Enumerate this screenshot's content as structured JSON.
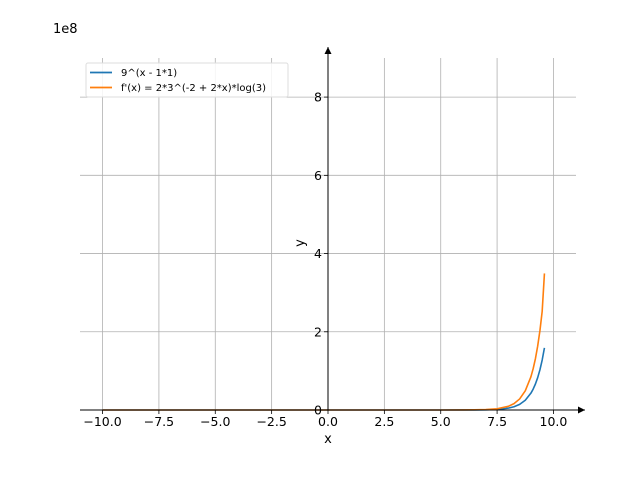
{
  "chart_data": {
    "type": "line",
    "title": "",
    "xlabel": "x",
    "ylabel": "y",
    "y_multiplier_label": "1e8",
    "xlim": [
      -11,
      11
    ],
    "ylim": [
      0,
      9
    ],
    "x_ticks": [
      -10.0,
      -7.5,
      -5.0,
      -2.5,
      0.0,
      2.5,
      5.0,
      7.5,
      10.0
    ],
    "x_tick_labels": [
      "−10.0",
      "−7.5",
      "−5.0",
      "−2.5",
      "0.0",
      "2.5",
      "5.0",
      "7.5",
      "10.0"
    ],
    "y_ticks": [
      0,
      2,
      4,
      6,
      8
    ],
    "y_tick_labels": [
      "0",
      "2",
      "4",
      "6",
      "8"
    ],
    "grid": true,
    "legend_position": "top-left",
    "series": [
      {
        "name": "9^(x - 1*1)",
        "color": "#1f77b4",
        "x": [
          -10,
          -7.5,
          -5,
          -2.5,
          0,
          2.5,
          5,
          6,
          6.5,
          7,
          7.5,
          8,
          8.25,
          8.5,
          8.75,
          9,
          9.1,
          9.2,
          9.3,
          9.4,
          9.5,
          9.6
        ],
        "y": [
          0,
          0,
          0,
          0,
          0,
          0,
          0,
          0.0005,
          0.0014,
          0.0043,
          0.013,
          0.048,
          0.083,
          0.144,
          0.249,
          0.43,
          0.535,
          0.665,
          0.826,
          1.028,
          1.278,
          1.589
        ]
      },
      {
        "name": "f'(x) = 2*3^(-2 + 2*x)*log(3)",
        "color": "#ff7f0e",
        "x": [
          -10,
          -7.5,
          -5,
          -2.5,
          0,
          2.5,
          5,
          6,
          6.5,
          7,
          7.5,
          8,
          8.25,
          8.5,
          8.75,
          9,
          9.1,
          9.2,
          9.3,
          9.4,
          9.5,
          9.6
        ],
        "y": [
          0,
          0,
          0,
          0,
          0,
          0,
          0,
          0.0012,
          0.0035,
          0.0105,
          0.0315,
          0.094,
          0.163,
          0.283,
          0.49,
          0.849,
          1.056,
          1.313,
          1.632,
          2.029,
          2.524,
          3.491
        ]
      }
    ]
  }
}
